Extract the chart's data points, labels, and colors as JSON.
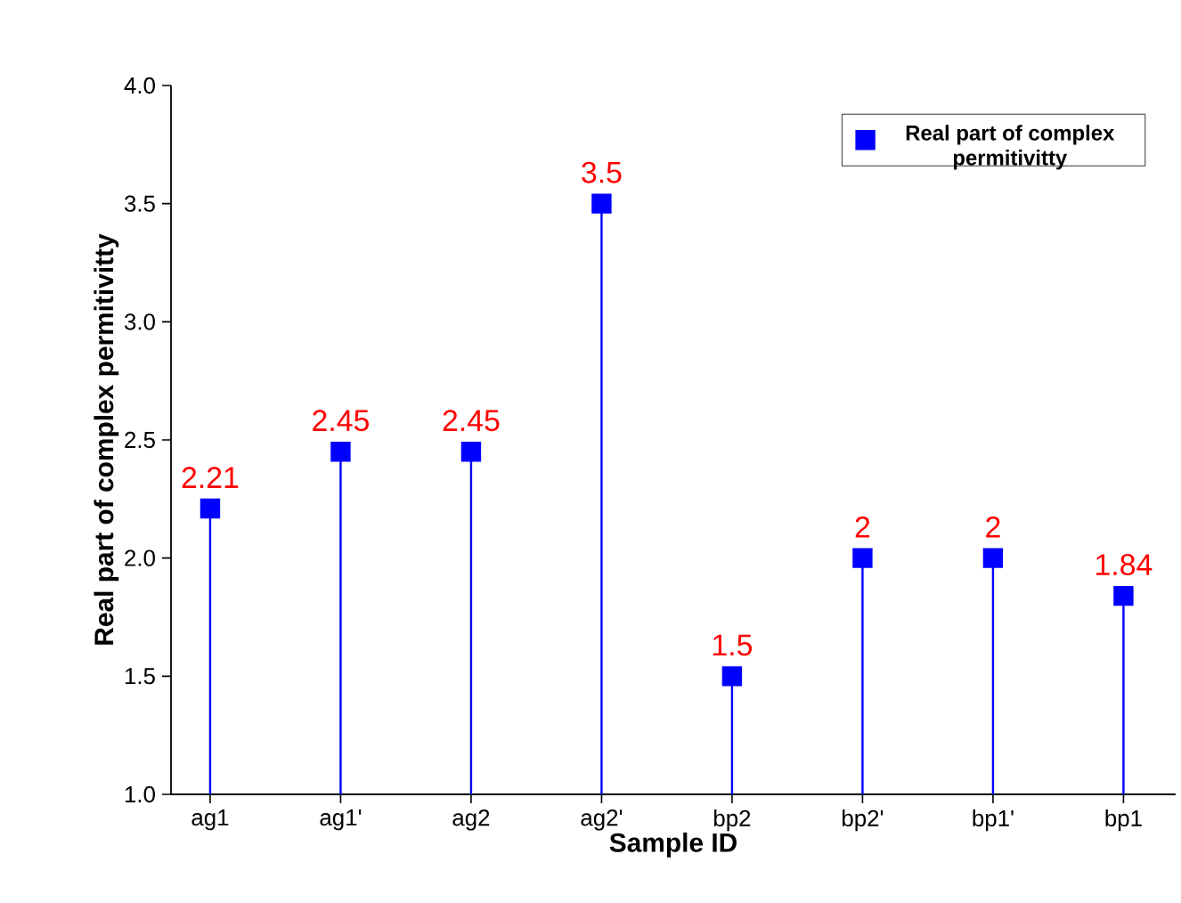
{
  "chart_data": {
    "type": "lollipop",
    "xlabel": "Sample ID",
    "ylabel": "Real part of complex permitivitty",
    "categories": [
      "ag1",
      "ag1'",
      "ag2",
      "ag2'",
      "bp2",
      "bp2'",
      "bp1'",
      "bp1"
    ],
    "series": [
      {
        "name": "Real part of complex permitivitty",
        "color": "#0000ff",
        "values": [
          2.21,
          2.45,
          2.45,
          3.5,
          1.5,
          2,
          2,
          1.84
        ]
      }
    ],
    "value_labels": [
      "2.21",
      "2.45",
      "2.45",
      "3.5",
      "1.5",
      "2",
      "2",
      "1.84"
    ],
    "ylim": [
      1,
      4
    ],
    "yticks": [
      {
        "value": 1,
        "label": "1.0"
      },
      {
        "value": 1.5,
        "label": "1.5"
      },
      {
        "value": 2,
        "label": "2.0"
      },
      {
        "value": 2.5,
        "label": "2.5"
      },
      {
        "value": 3,
        "label": "3.0"
      },
      {
        "value": 3.5,
        "label": "3.5"
      },
      {
        "value": 4,
        "label": "4.0"
      }
    ],
    "marker": "square",
    "legend": "top right",
    "grid": false
  }
}
